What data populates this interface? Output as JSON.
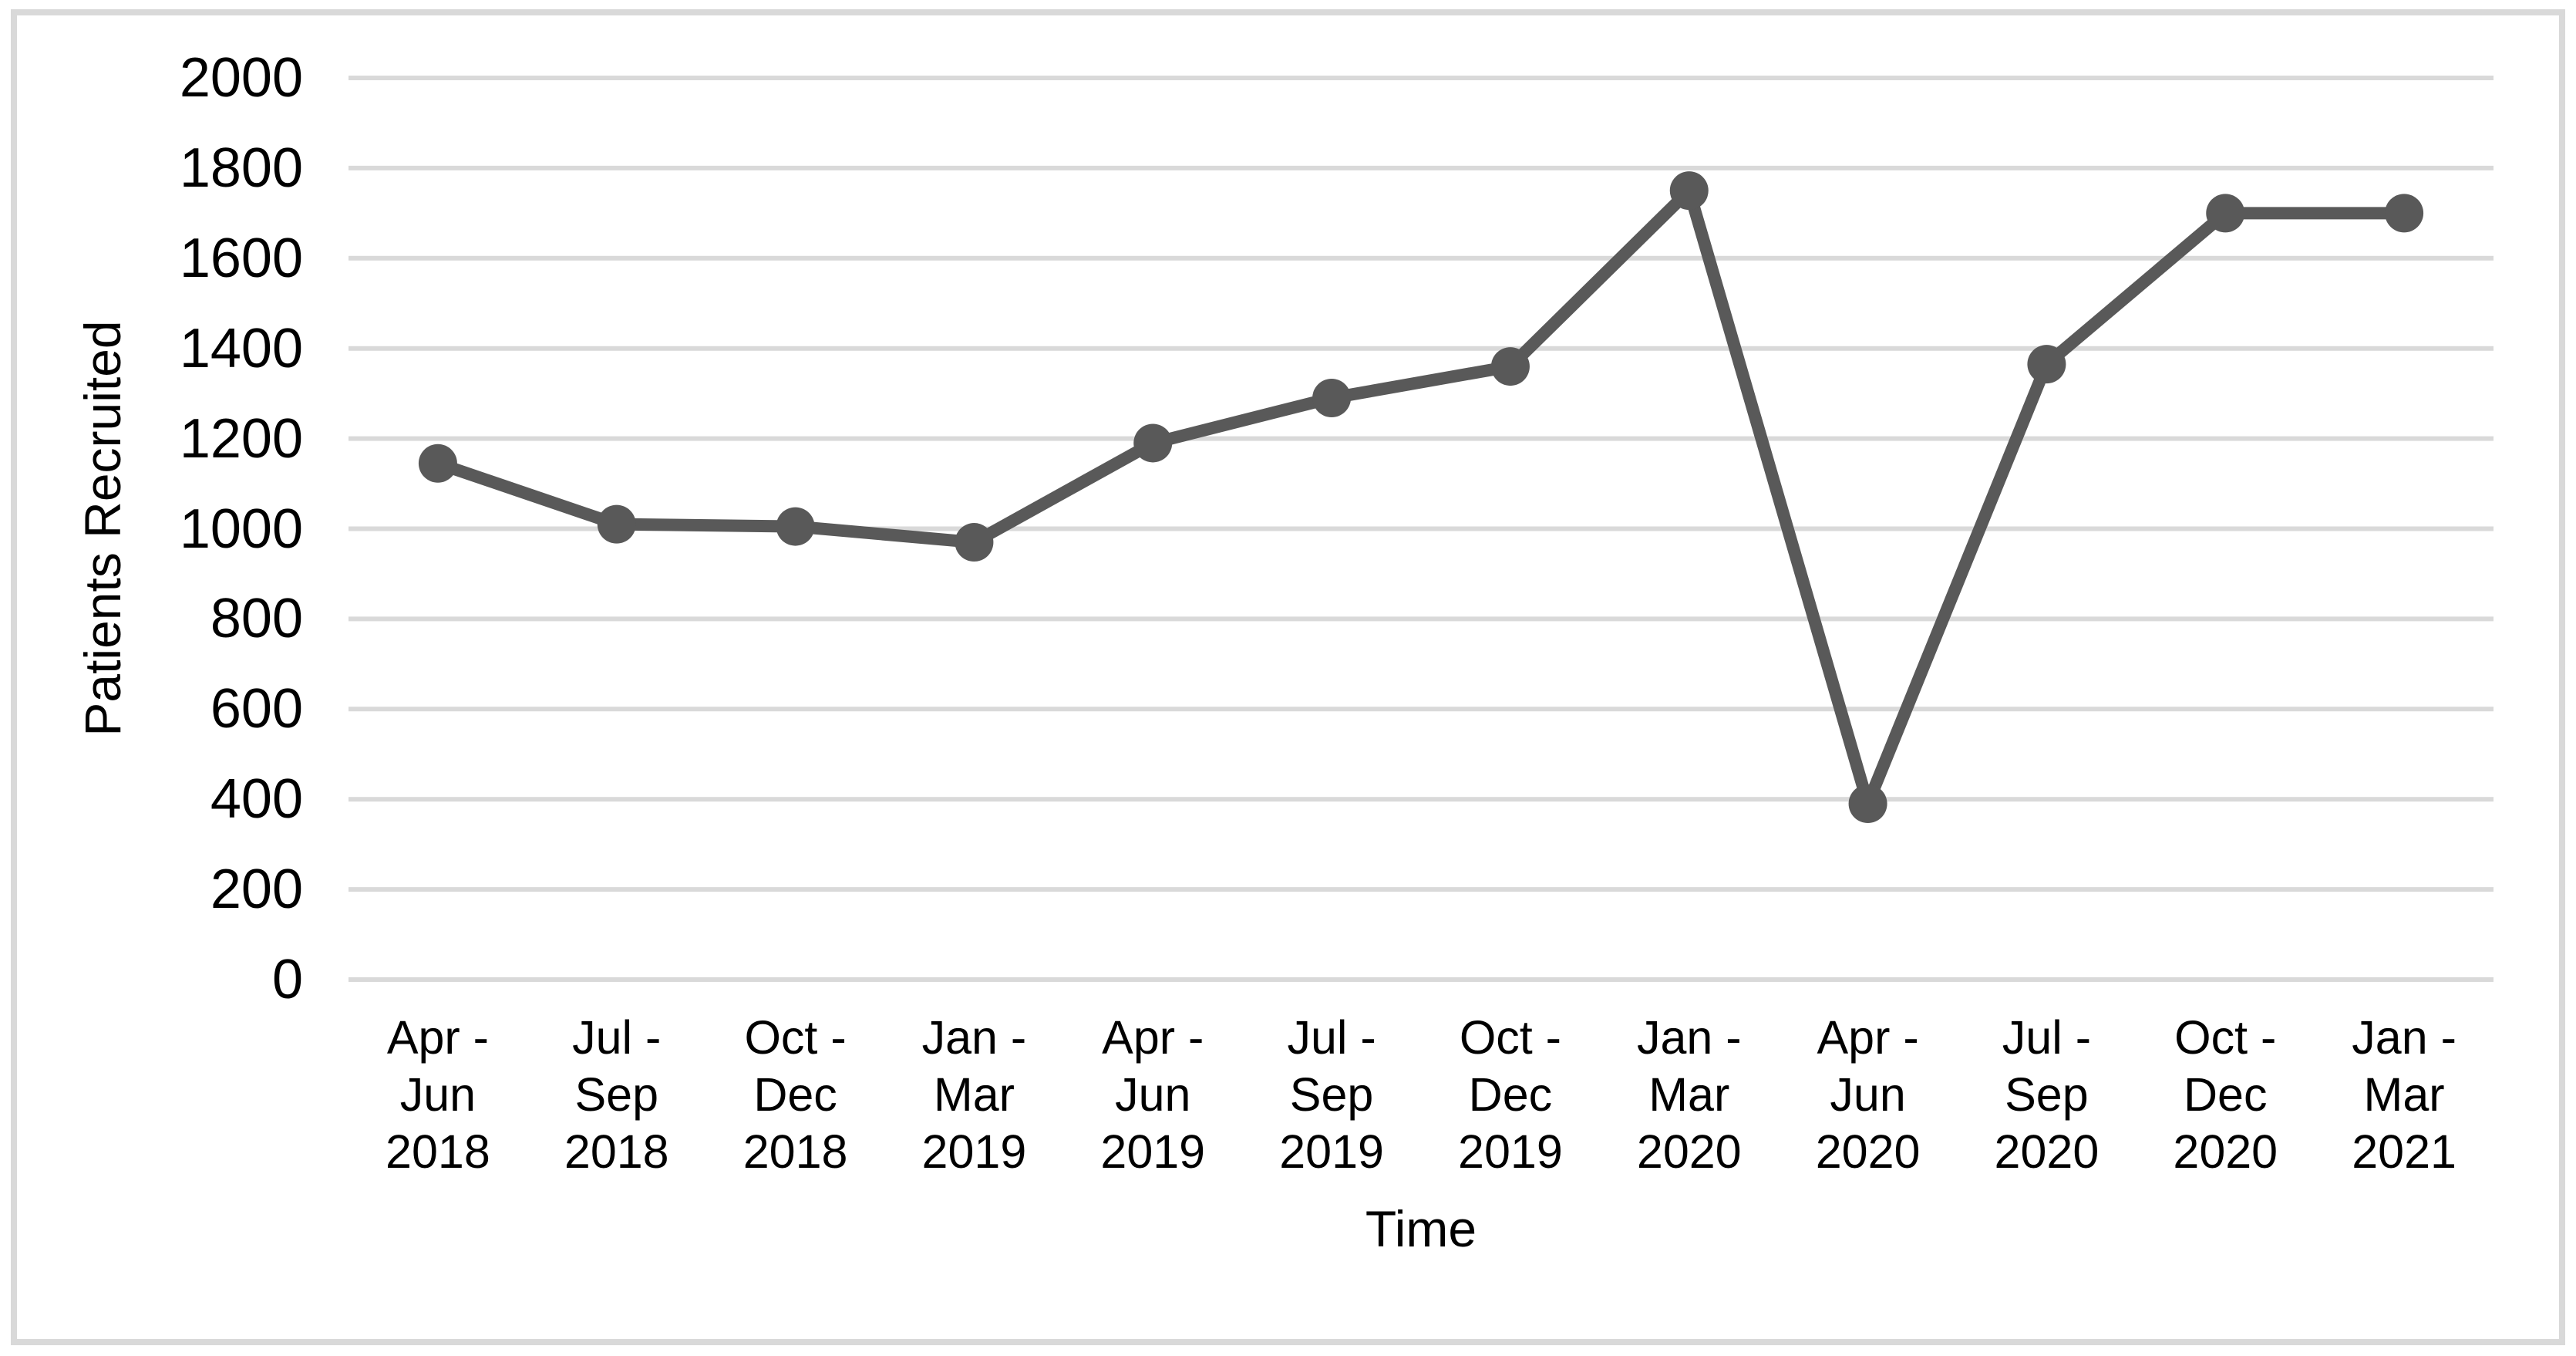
{
  "page": {
    "background_color": "#ffffff",
    "frame_border_color": "#d9d9d9"
  },
  "chart_data": {
    "type": "line",
    "title": "",
    "xlabel": "Time",
    "ylabel": "Patients Recruited",
    "categories": [
      "Apr - Jun 2018",
      "Jul - Sep 2018",
      "Oct - Dec 2018",
      "Jan - Mar 2019",
      "Apr - Jun 2019",
      "Jul - Sep 2019",
      "Oct - Dec 2019",
      "Jan - Mar 2020",
      "Apr - Jun 2020",
      "Jul - Sep 2020",
      "Oct - Dec 2020",
      "Jan - Mar 2021"
    ],
    "values": [
      1145,
      1010,
      1005,
      970,
      1190,
      1290,
      1360,
      1750,
      390,
      1365,
      1700,
      1700
    ],
    "ylim": [
      0,
      2000
    ],
    "y_ticks": [
      0,
      200,
      400,
      600,
      800,
      1000,
      1200,
      1400,
      1600,
      1800,
      2000
    ],
    "grid": "horizontal",
    "legend": "none",
    "line_color": "#595959",
    "marker": "circle",
    "marker_color": "#595959",
    "gridline_color": "#d9d9d9",
    "tick_label_color": "#000000"
  }
}
